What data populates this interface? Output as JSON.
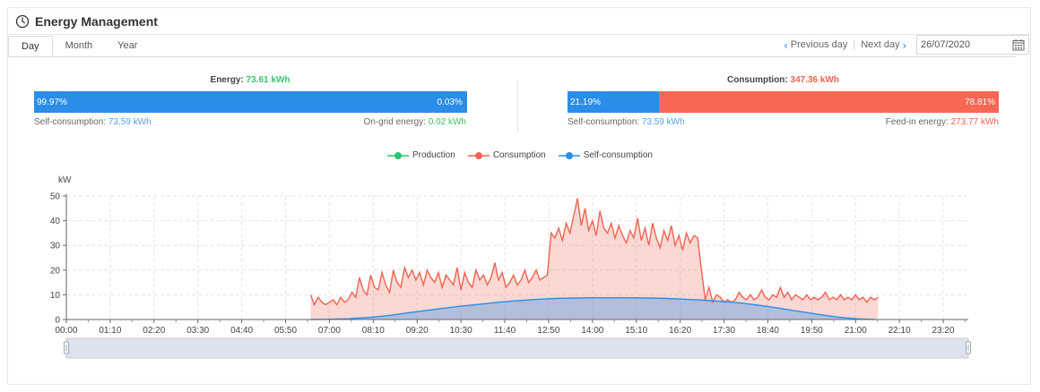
{
  "header": {
    "title": "Energy Management"
  },
  "tabs": [
    {
      "label": "Day",
      "active": true
    },
    {
      "label": "Month",
      "active": false
    },
    {
      "label": "Year",
      "active": false
    }
  ],
  "date_nav": {
    "previous_label": "Previous day",
    "next_label": "Next day",
    "date_value": "26/07/2020"
  },
  "energy_bar": {
    "title_label": "Energy: ",
    "title_value": "73.61 kWh",
    "left_pct": "99.97%",
    "right_pct": "0.03%",
    "left_fraction": 0.9997,
    "left_label": "Self-consumption: ",
    "left_value": "73.59 kWh",
    "right_label": "On-grid energy: ",
    "right_value": "0.02 kWh"
  },
  "consumption_bar": {
    "title_label": "Consumption: ",
    "title_value": "347.36 kWh",
    "left_pct": "21.19%",
    "right_pct": "78.81%",
    "left_fraction": 0.2119,
    "left_label": "Self-consumption: ",
    "left_value": "73.59 kWh",
    "right_label": "Feed-in energy: ",
    "right_value": "273.77 kWh"
  },
  "colors": {
    "production": "#2ec46d",
    "consumption": "#f0634f",
    "self_consumption": "#2a8ee8"
  },
  "legend": [
    "Production",
    "Consumption",
    "Self-consumption"
  ],
  "chart_data": {
    "type": "area",
    "ylabel": "kW",
    "ylim": [
      0,
      50
    ],
    "yticks": [
      "0",
      "10",
      "20",
      "30",
      "40",
      "50"
    ],
    "xticks": [
      "00:00",
      "01:10",
      "02:20",
      "03:30",
      "04:40",
      "05:50",
      "07:00",
      "08:10",
      "09:20",
      "10:30",
      "11:40",
      "12:50",
      "14:00",
      "15:10",
      "16:20",
      "17:30",
      "18:40",
      "19:50",
      "21:00",
      "22:10",
      "23:20"
    ],
    "x_start_hour": 0,
    "x_end_hour": 24,
    "series": [
      {
        "name": "Consumption",
        "points": [
          [
            6.5,
            10
          ],
          [
            6.6,
            6
          ],
          [
            6.7,
            9
          ],
          [
            6.8,
            7
          ],
          [
            6.9,
            6
          ],
          [
            7.0,
            7
          ],
          [
            7.1,
            8
          ],
          [
            7.2,
            6
          ],
          [
            7.3,
            9
          ],
          [
            7.4,
            7
          ],
          [
            7.5,
            8
          ],
          [
            7.6,
            11
          ],
          [
            7.7,
            9
          ],
          [
            7.8,
            17
          ],
          [
            7.9,
            12
          ],
          [
            8.0,
            10
          ],
          [
            8.1,
            18
          ],
          [
            8.2,
            13
          ],
          [
            8.3,
            12
          ],
          [
            8.4,
            19
          ],
          [
            8.5,
            14
          ],
          [
            8.6,
            11
          ],
          [
            8.7,
            20
          ],
          [
            8.8,
            15
          ],
          [
            8.9,
            13
          ],
          [
            9.0,
            21
          ],
          [
            9.1,
            17
          ],
          [
            9.2,
            20
          ],
          [
            9.3,
            16
          ],
          [
            9.4,
            19
          ],
          [
            9.5,
            14
          ],
          [
            9.6,
            20
          ],
          [
            9.7,
            17
          ],
          [
            9.8,
            15
          ],
          [
            9.9,
            19
          ],
          [
            10.0,
            13
          ],
          [
            10.1,
            18
          ],
          [
            10.2,
            16
          ],
          [
            10.3,
            14
          ],
          [
            10.4,
            21
          ],
          [
            10.5,
            12
          ],
          [
            10.6,
            19
          ],
          [
            10.7,
            15
          ],
          [
            10.8,
            13
          ],
          [
            10.9,
            20
          ],
          [
            11.0,
            16
          ],
          [
            11.1,
            18
          ],
          [
            11.2,
            14
          ],
          [
            11.3,
            17
          ],
          [
            11.4,
            23
          ],
          [
            11.5,
            16
          ],
          [
            11.6,
            19
          ],
          [
            11.7,
            13
          ],
          [
            11.8,
            15
          ],
          [
            11.9,
            18
          ],
          [
            12.0,
            14
          ],
          [
            12.1,
            16
          ],
          [
            12.2,
            20
          ],
          [
            12.3,
            15
          ],
          [
            12.4,
            17
          ],
          [
            12.5,
            20
          ],
          [
            12.6,
            16
          ],
          [
            12.7,
            17
          ],
          [
            12.8,
            18
          ],
          [
            12.9,
            35
          ],
          [
            13.0,
            33
          ],
          [
            13.1,
            37
          ],
          [
            13.2,
            32
          ],
          [
            13.3,
            39
          ],
          [
            13.4,
            35
          ],
          [
            13.5,
            42
          ],
          [
            13.6,
            49
          ],
          [
            13.7,
            38
          ],
          [
            13.8,
            45
          ],
          [
            13.9,
            36
          ],
          [
            14.0,
            40
          ],
          [
            14.1,
            34
          ],
          [
            14.2,
            44
          ],
          [
            14.3,
            37
          ],
          [
            14.4,
            35
          ],
          [
            14.5,
            39
          ],
          [
            14.6,
            33
          ],
          [
            14.7,
            38
          ],
          [
            14.8,
            34
          ],
          [
            14.9,
            31
          ],
          [
            15.0,
            36
          ],
          [
            15.1,
            33
          ],
          [
            15.2,
            41
          ],
          [
            15.3,
            32
          ],
          [
            15.4,
            37
          ],
          [
            15.5,
            30
          ],
          [
            15.6,
            39
          ],
          [
            15.7,
            33
          ],
          [
            15.8,
            29
          ],
          [
            15.9,
            36
          ],
          [
            16.0,
            32
          ],
          [
            16.1,
            38
          ],
          [
            16.2,
            30
          ],
          [
            16.3,
            34
          ],
          [
            16.4,
            28
          ],
          [
            16.5,
            35
          ],
          [
            16.6,
            31
          ],
          [
            16.7,
            34
          ],
          [
            16.8,
            33
          ],
          [
            16.9,
            20
          ],
          [
            17.0,
            8
          ],
          [
            17.1,
            13
          ],
          [
            17.2,
            7
          ],
          [
            17.3,
            10
          ],
          [
            17.4,
            9
          ],
          [
            17.5,
            7
          ],
          [
            17.6,
            8
          ],
          [
            17.7,
            7
          ],
          [
            17.8,
            8
          ],
          [
            17.9,
            11
          ],
          [
            18.0,
            9
          ],
          [
            18.1,
            8
          ],
          [
            18.2,
            10
          ],
          [
            18.3,
            8
          ],
          [
            18.4,
            9
          ],
          [
            18.5,
            12
          ],
          [
            18.6,
            9
          ],
          [
            18.7,
            8
          ],
          [
            18.8,
            10
          ],
          [
            18.9,
            9
          ],
          [
            19.0,
            13
          ],
          [
            19.1,
            9
          ],
          [
            19.2,
            11
          ],
          [
            19.3,
            8
          ],
          [
            19.4,
            10
          ],
          [
            19.5,
            9
          ],
          [
            19.6,
            8
          ],
          [
            19.7,
            10
          ],
          [
            19.8,
            8
          ],
          [
            19.9,
            9
          ],
          [
            20.0,
            8
          ],
          [
            20.1,
            9
          ],
          [
            20.2,
            11
          ],
          [
            20.3,
            8
          ],
          [
            20.4,
            9
          ],
          [
            20.5,
            8
          ],
          [
            20.6,
            10
          ],
          [
            20.7,
            8
          ],
          [
            20.8,
            9
          ],
          [
            20.9,
            8
          ],
          [
            21.0,
            10
          ],
          [
            21.1,
            8
          ],
          [
            21.2,
            9
          ],
          [
            21.3,
            7
          ],
          [
            21.4,
            9
          ],
          [
            21.5,
            8
          ],
          [
            21.6,
            9
          ]
        ]
      },
      {
        "name": "Self-consumption",
        "points": [
          [
            6.5,
            0
          ],
          [
            7.0,
            0.1
          ],
          [
            7.5,
            0.3
          ],
          [
            8.0,
            0.8
          ],
          [
            8.5,
            1.5
          ],
          [
            9.0,
            2.5
          ],
          [
            9.5,
            3.5
          ],
          [
            10.0,
            4.5
          ],
          [
            10.5,
            5.4
          ],
          [
            11.0,
            6.2
          ],
          [
            11.5,
            7.0
          ],
          [
            12.0,
            7.6
          ],
          [
            12.5,
            8.1
          ],
          [
            13.0,
            8.5
          ],
          [
            13.5,
            8.7
          ],
          [
            14.0,
            8.8
          ],
          [
            14.5,
            8.8
          ],
          [
            15.0,
            8.8
          ],
          [
            15.5,
            8.7
          ],
          [
            16.0,
            8.5
          ],
          [
            16.5,
            8.2
          ],
          [
            17.0,
            7.8
          ],
          [
            17.5,
            7.3
          ],
          [
            18.0,
            6.6
          ],
          [
            18.5,
            5.6
          ],
          [
            19.0,
            4.5
          ],
          [
            19.5,
            3.3
          ],
          [
            20.0,
            2.1
          ],
          [
            20.5,
            1.0
          ],
          [
            21.0,
            0.3
          ],
          [
            21.5,
            0
          ]
        ]
      }
    ]
  }
}
